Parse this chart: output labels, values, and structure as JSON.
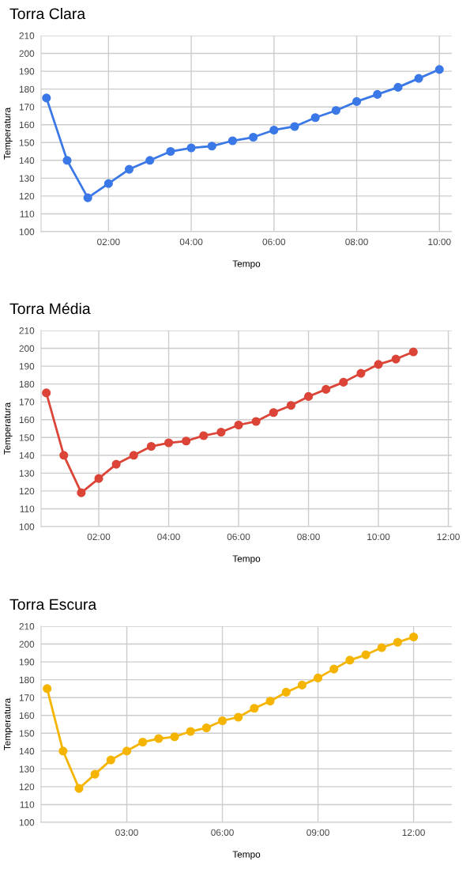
{
  "chart_data": [
    {
      "type": "line",
      "title": "Torra Clara",
      "xlabel": "Tempo",
      "ylabel": "Temperatura",
      "x": [
        0.5,
        1,
        1.5,
        2,
        2.5,
        3,
        3.5,
        4,
        4.5,
        5,
        5.5,
        6,
        6.5,
        7,
        7.5,
        8,
        8.5,
        9,
        9.5,
        10
      ],
      "series": [
        {
          "color": "#3b78e7",
          "values": [
            175,
            140,
            119,
            127,
            135,
            140,
            145,
            147,
            148,
            151,
            153,
            157,
            159,
            164,
            168,
            173,
            177,
            181,
            186,
            191
          ]
        }
      ],
      "xlim": [
        0.37,
        10.3
      ],
      "xticks": [
        {
          "value": 2,
          "label": "02:00"
        },
        {
          "value": 4,
          "label": "04:00"
        },
        {
          "value": 6,
          "label": "06:00"
        },
        {
          "value": 8,
          "label": "08:00"
        },
        {
          "value": 10,
          "label": "10:00"
        }
      ],
      "ylim": [
        100,
        210
      ],
      "yticks": [
        100,
        110,
        120,
        130,
        140,
        150,
        160,
        170,
        180,
        190,
        200,
        210
      ],
      "grid": true,
      "marker": "circle",
      "line_style": "solid"
    },
    {
      "type": "line",
      "title": "Torra Média",
      "xlabel": "Tempo",
      "ylabel": "Temperatura",
      "x": [
        0.5,
        1,
        1.5,
        2,
        2.5,
        3,
        3.5,
        4,
        4.5,
        5,
        5.5,
        6,
        6.5,
        7,
        7.5,
        8,
        8.5,
        9,
        9.5,
        10,
        10.5,
        11
      ],
      "series": [
        {
          "color": "#db4437",
          "values": [
            175,
            140,
            119,
            127,
            135,
            140,
            145,
            147,
            148,
            151,
            153,
            157,
            159,
            164,
            168,
            173,
            177,
            181,
            186,
            191,
            194,
            198
          ]
        }
      ],
      "xlim": [
        0.35,
        12.1
      ],
      "xticks": [
        {
          "value": 2,
          "label": "02:00"
        },
        {
          "value": 4,
          "label": "04:00"
        },
        {
          "value": 6,
          "label": "06:00"
        },
        {
          "value": 8,
          "label": "08:00"
        },
        {
          "value": 10,
          "label": "10:00"
        },
        {
          "value": 12,
          "label": "12:00"
        }
      ],
      "ylim": [
        100,
        210
      ],
      "yticks": [
        100,
        110,
        120,
        130,
        140,
        150,
        160,
        170,
        180,
        190,
        200,
        210
      ],
      "grid": true,
      "marker": "circle",
      "line_style": "solid"
    },
    {
      "type": "line",
      "title": "Torra Escura",
      "xlabel": "Tempo",
      "ylabel": "Temperatura",
      "x": [
        0.5,
        1,
        1.5,
        2,
        2.5,
        3,
        3.5,
        4,
        4.5,
        5,
        5.5,
        6,
        6.5,
        7,
        7.5,
        8,
        8.5,
        9,
        9.5,
        10,
        10.5,
        11,
        11.5,
        12
      ],
      "series": [
        {
          "color": "#f4b400",
          "values": [
            175,
            140,
            119,
            127,
            135,
            140,
            145,
            147,
            148,
            151,
            153,
            157,
            159,
            164,
            168,
            173,
            177,
            181,
            186,
            191,
            194,
            198,
            201,
            204
          ]
        }
      ],
      "xlim": [
        0.31,
        13.2
      ],
      "xticks": [
        {
          "value": 3,
          "label": "03:00"
        },
        {
          "value": 6,
          "label": "06:00"
        },
        {
          "value": 9,
          "label": "09:00"
        },
        {
          "value": 12,
          "label": "12:00"
        }
      ],
      "ylim": [
        100,
        210
      ],
      "yticks": [
        100,
        110,
        120,
        130,
        140,
        150,
        160,
        170,
        180,
        190,
        200,
        210
      ],
      "grid": true,
      "marker": "circle",
      "line_style": "solid"
    }
  ]
}
